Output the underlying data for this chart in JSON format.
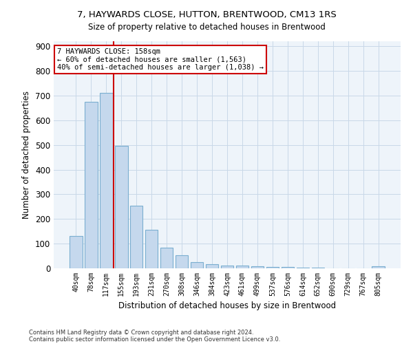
{
  "title1": "7, HAYWARDS CLOSE, HUTTON, BRENTWOOD, CM13 1RS",
  "title2": "Size of property relative to detached houses in Brentwood",
  "xlabel": "Distribution of detached houses by size in Brentwood",
  "ylabel": "Number of detached properties",
  "footnote1": "Contains HM Land Registry data © Crown copyright and database right 2024.",
  "footnote2": "Contains public sector information licensed under the Open Government Licence v3.0.",
  "bar_labels": [
    "40sqm",
    "78sqm",
    "117sqm",
    "155sqm",
    "193sqm",
    "231sqm",
    "270sqm",
    "308sqm",
    "346sqm",
    "384sqm",
    "423sqm",
    "461sqm",
    "499sqm",
    "537sqm",
    "576sqm",
    "614sqm",
    "652sqm",
    "690sqm",
    "729sqm",
    "767sqm",
    "805sqm"
  ],
  "bar_values": [
    130,
    675,
    710,
    495,
    255,
    155,
    85,
    52,
    25,
    17,
    10,
    10,
    8,
    5,
    5,
    2,
    2,
    1,
    0,
    0,
    8
  ],
  "bar_color": "#c5d8ed",
  "bar_edge_color": "#7aaed0",
  "vline_color": "#cc0000",
  "ylim": [
    0,
    920
  ],
  "yticks": [
    0,
    100,
    200,
    300,
    400,
    500,
    600,
    700,
    800,
    900
  ],
  "annotation_title": "7 HAYWARDS CLOSE: 158sqm",
  "annotation_line1": "← 60% of detached houses are smaller (1,563)",
  "annotation_line2": "40% of semi-detached houses are larger (1,038) →",
  "annotation_box_color": "#ffffff",
  "annotation_edge_color": "#cc0000",
  "grid_color": "#c8d8e8",
  "background_color": "#eef4fa"
}
